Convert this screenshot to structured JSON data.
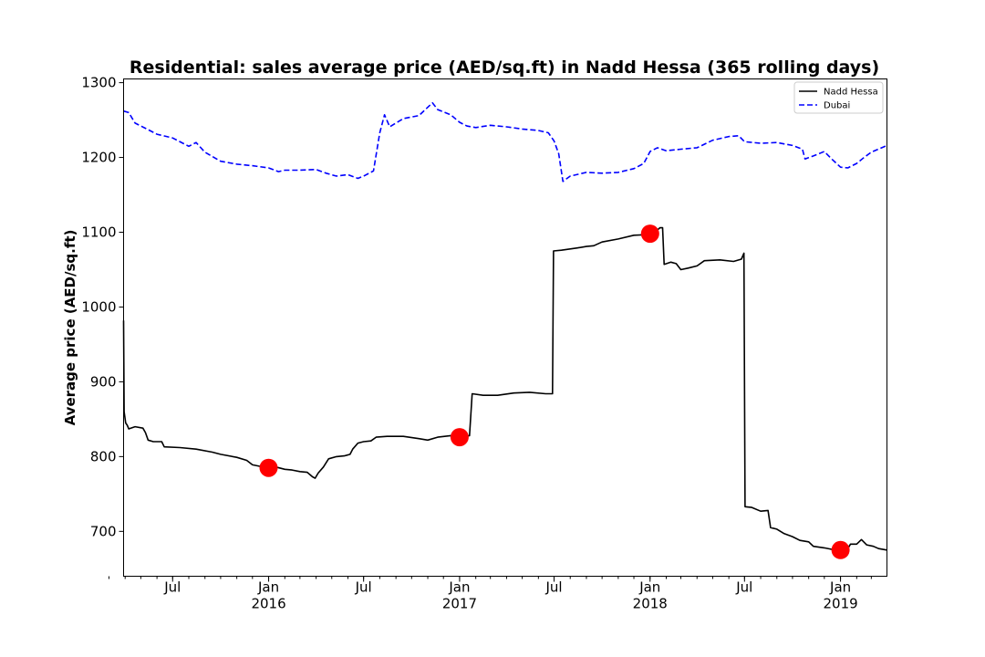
{
  "chart_data": {
    "type": "line",
    "title": "Residential: sales average price (AED/sq.ft) in Nadd Hessa (365 rolling days)",
    "xlabel": "",
    "ylabel": "Average price (AED/sq.ft)",
    "x_range": [
      "2015-03-29",
      "2019-03-31"
    ],
    "ylim": [
      640,
      1305
    ],
    "y_ticks": [
      700,
      800,
      900,
      1000,
      1100,
      1200,
      1300
    ],
    "x_ticks": [
      {
        "date": "2015-07-01",
        "label": "Jul",
        "sub": ""
      },
      {
        "date": "2016-01-01",
        "label": "Jan",
        "sub": "2016"
      },
      {
        "date": "2016-07-01",
        "label": "Jul",
        "sub": ""
      },
      {
        "date": "2017-01-01",
        "label": "Jan",
        "sub": "2017"
      },
      {
        "date": "2017-07-01",
        "label": "Jul",
        "sub": ""
      },
      {
        "date": "2018-01-01",
        "label": "Jan",
        "sub": "2018"
      },
      {
        "date": "2018-07-01",
        "label": "Jul",
        "sub": ""
      },
      {
        "date": "2019-01-01",
        "label": "Jan",
        "sub": "2019"
      }
    ],
    "grid": false,
    "legend_position": "top-right",
    "series": [
      {
        "name": "Nadd Hessa",
        "color": "#000000",
        "style": "solid",
        "points": [
          [
            "2015-03-29",
            982
          ],
          [
            "2015-03-30",
            860
          ],
          [
            "2015-04-02",
            845
          ],
          [
            "2015-04-05",
            842
          ],
          [
            "2015-04-08",
            837
          ],
          [
            "2015-04-20",
            840
          ],
          [
            "2015-05-05",
            838
          ],
          [
            "2015-05-10",
            832
          ],
          [
            "2015-05-15",
            822
          ],
          [
            "2015-05-25",
            820
          ],
          [
            "2015-06-10",
            820
          ],
          [
            "2015-06-15",
            813
          ],
          [
            "2015-07-15",
            812
          ],
          [
            "2015-08-15",
            810
          ],
          [
            "2015-09-15",
            806
          ],
          [
            "2015-10-01",
            803
          ],
          [
            "2015-11-01",
            799
          ],
          [
            "2015-11-20",
            795
          ],
          [
            "2015-12-01",
            789
          ],
          [
            "2015-12-15",
            787
          ],
          [
            "2016-01-01",
            787
          ],
          [
            "2016-01-15",
            786
          ],
          [
            "2016-02-01",
            783
          ],
          [
            "2016-02-15",
            782
          ],
          [
            "2016-03-01",
            780
          ],
          [
            "2016-03-15",
            779
          ],
          [
            "2016-03-25",
            773
          ],
          [
            "2016-03-30",
            771
          ],
          [
            "2016-04-05",
            778
          ],
          [
            "2016-04-15",
            786
          ],
          [
            "2016-04-25",
            797
          ],
          [
            "2016-05-10",
            800
          ],
          [
            "2016-05-25",
            801
          ],
          [
            "2016-06-05",
            803
          ],
          [
            "2016-06-10",
            810
          ],
          [
            "2016-06-20",
            818
          ],
          [
            "2016-07-01",
            820
          ],
          [
            "2016-07-15",
            821
          ],
          [
            "2016-07-25",
            826
          ],
          [
            "2016-08-15",
            827
          ],
          [
            "2016-09-15",
            827
          ],
          [
            "2016-10-15",
            824
          ],
          [
            "2016-11-01",
            822
          ],
          [
            "2016-11-20",
            826
          ],
          [
            "2016-12-15",
            828
          ],
          [
            "2017-01-01",
            826
          ],
          [
            "2017-01-10",
            827
          ],
          [
            "2017-01-20",
            828
          ],
          [
            "2017-01-25",
            884
          ],
          [
            "2017-02-15",
            882
          ],
          [
            "2017-03-15",
            882
          ],
          [
            "2017-04-15",
            885
          ],
          [
            "2017-05-15",
            886
          ],
          [
            "2017-06-15",
            884
          ],
          [
            "2017-06-28",
            884
          ],
          [
            "2017-06-30",
            1075
          ],
          [
            "2017-07-15",
            1076
          ],
          [
            "2017-08-15",
            1079
          ],
          [
            "2017-09-01",
            1081
          ],
          [
            "2017-09-15",
            1082
          ],
          [
            "2017-10-01",
            1087
          ],
          [
            "2017-11-01",
            1091
          ],
          [
            "2017-12-01",
            1096
          ],
          [
            "2018-01-01",
            1097
          ],
          [
            "2018-01-15",
            1103
          ],
          [
            "2018-01-20",
            1106
          ],
          [
            "2018-01-25",
            1106
          ],
          [
            "2018-01-28",
            1057
          ],
          [
            "2018-02-10",
            1060
          ],
          [
            "2018-02-20",
            1058
          ],
          [
            "2018-03-01",
            1050
          ],
          [
            "2018-03-15",
            1052
          ],
          [
            "2018-04-01",
            1055
          ],
          [
            "2018-04-15",
            1062
          ],
          [
            "2018-05-15",
            1063
          ],
          [
            "2018-06-10",
            1061
          ],
          [
            "2018-06-25",
            1064
          ],
          [
            "2018-06-30",
            1072
          ],
          [
            "2018-07-02",
            733
          ],
          [
            "2018-07-15",
            732
          ],
          [
            "2018-08-01",
            727
          ],
          [
            "2018-08-15",
            728
          ],
          [
            "2018-08-20",
            705
          ],
          [
            "2018-09-01",
            703
          ],
          [
            "2018-09-15",
            697
          ],
          [
            "2018-10-01",
            693
          ],
          [
            "2018-10-15",
            688
          ],
          [
            "2018-11-01",
            686
          ],
          [
            "2018-11-10",
            680
          ],
          [
            "2018-12-01",
            678
          ],
          [
            "2018-12-15",
            676
          ],
          [
            "2019-01-01",
            675
          ],
          [
            "2019-01-15",
            677
          ],
          [
            "2019-01-20",
            683
          ],
          [
            "2019-02-01",
            683
          ],
          [
            "2019-02-10",
            689
          ],
          [
            "2019-02-20",
            682
          ],
          [
            "2019-03-05",
            680
          ],
          [
            "2019-03-15",
            677
          ],
          [
            "2019-03-31",
            675
          ]
        ]
      },
      {
        "name": "Dubai",
        "color": "#0000ff",
        "style": "dashed",
        "points": [
          [
            "2015-03-29",
            1262
          ],
          [
            "2015-04-08",
            1260
          ],
          [
            "2015-04-20",
            1246
          ],
          [
            "2015-05-10",
            1239
          ],
          [
            "2015-06-01",
            1231
          ],
          [
            "2015-07-01",
            1226
          ],
          [
            "2015-08-01",
            1215
          ],
          [
            "2015-08-15",
            1220
          ],
          [
            "2015-09-01",
            1207
          ],
          [
            "2015-10-01",
            1195
          ],
          [
            "2015-11-01",
            1191
          ],
          [
            "2015-12-01",
            1189
          ],
          [
            "2016-01-01",
            1186
          ],
          [
            "2016-01-20",
            1181
          ],
          [
            "2016-02-01",
            1183
          ],
          [
            "2016-03-01",
            1183
          ],
          [
            "2016-04-01",
            1184
          ],
          [
            "2016-04-20",
            1179
          ],
          [
            "2016-05-10",
            1175
          ],
          [
            "2016-06-01",
            1177
          ],
          [
            "2016-06-20",
            1172
          ],
          [
            "2016-07-01",
            1175
          ],
          [
            "2016-07-20",
            1182
          ],
          [
            "2016-08-01",
            1233
          ],
          [
            "2016-08-10",
            1257
          ],
          [
            "2016-08-20",
            1241
          ],
          [
            "2016-09-15",
            1252
          ],
          [
            "2016-10-15",
            1256
          ],
          [
            "2016-11-01",
            1267
          ],
          [
            "2016-11-10",
            1273
          ],
          [
            "2016-11-20",
            1264
          ],
          [
            "2016-12-15",
            1257
          ],
          [
            "2017-01-01",
            1247
          ],
          [
            "2017-01-15",
            1242
          ],
          [
            "2017-02-01",
            1240
          ],
          [
            "2017-03-01",
            1243
          ],
          [
            "2017-04-01",
            1241
          ],
          [
            "2017-05-01",
            1238
          ],
          [
            "2017-06-01",
            1236
          ],
          [
            "2017-06-20",
            1233
          ],
          [
            "2017-07-01",
            1222
          ],
          [
            "2017-07-10",
            1205
          ],
          [
            "2017-07-18",
            1168
          ],
          [
            "2017-08-01",
            1175
          ],
          [
            "2017-09-01",
            1180
          ],
          [
            "2017-10-01",
            1179
          ],
          [
            "2017-11-01",
            1180
          ],
          [
            "2017-12-01",
            1185
          ],
          [
            "2017-12-20",
            1192
          ],
          [
            "2018-01-01",
            1208
          ],
          [
            "2018-01-15",
            1213
          ],
          [
            "2018-02-01",
            1209
          ],
          [
            "2018-03-01",
            1211
          ],
          [
            "2018-04-01",
            1213
          ],
          [
            "2018-05-01",
            1223
          ],
          [
            "2018-06-01",
            1228
          ],
          [
            "2018-06-20",
            1229
          ],
          [
            "2018-07-01",
            1221
          ],
          [
            "2018-08-01",
            1219
          ],
          [
            "2018-09-01",
            1220
          ],
          [
            "2018-10-01",
            1216
          ],
          [
            "2018-10-20",
            1211
          ],
          [
            "2018-10-25",
            1198
          ],
          [
            "2018-11-10",
            1202
          ],
          [
            "2018-12-01",
            1208
          ],
          [
            "2018-12-15",
            1198
          ],
          [
            "2019-01-01",
            1187
          ],
          [
            "2019-01-15",
            1186
          ],
          [
            "2019-02-01",
            1192
          ],
          [
            "2019-02-15",
            1200
          ],
          [
            "2019-03-01",
            1207
          ],
          [
            "2019-03-31",
            1216
          ]
        ]
      },
      {
        "name": "",
        "type": "scatter",
        "color": "#ff0000",
        "points": [
          [
            "2016-01-01",
            785
          ],
          [
            "2017-01-01",
            826
          ],
          [
            "2018-01-01",
            1098
          ],
          [
            "2019-01-01",
            675
          ]
        ]
      }
    ]
  }
}
